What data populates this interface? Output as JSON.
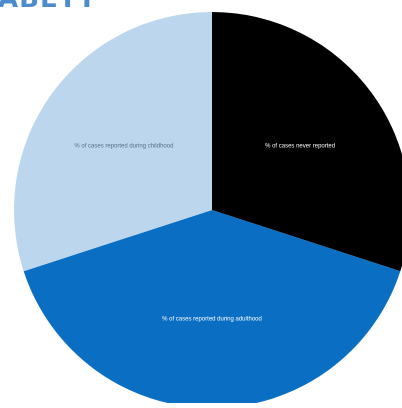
{
  "heading_fragment": "ABETT",
  "chart_data": {
    "type": "pie",
    "title": "",
    "start_angle_deg": 0,
    "direction": "clockwise",
    "slices": [
      {
        "label": "% of cases never reported",
        "value": 30,
        "color": "#000000",
        "label_color": "#ffffff"
      },
      {
        "label": "% of cases reported during adulthood",
        "value": 40,
        "color": "#0a6fc2",
        "label_color": "#ffffff"
      },
      {
        "label": "% of cases reported during childhood",
        "value": 30,
        "color": "#bcd6ee",
        "label_color": "#5a6f85"
      }
    ]
  }
}
